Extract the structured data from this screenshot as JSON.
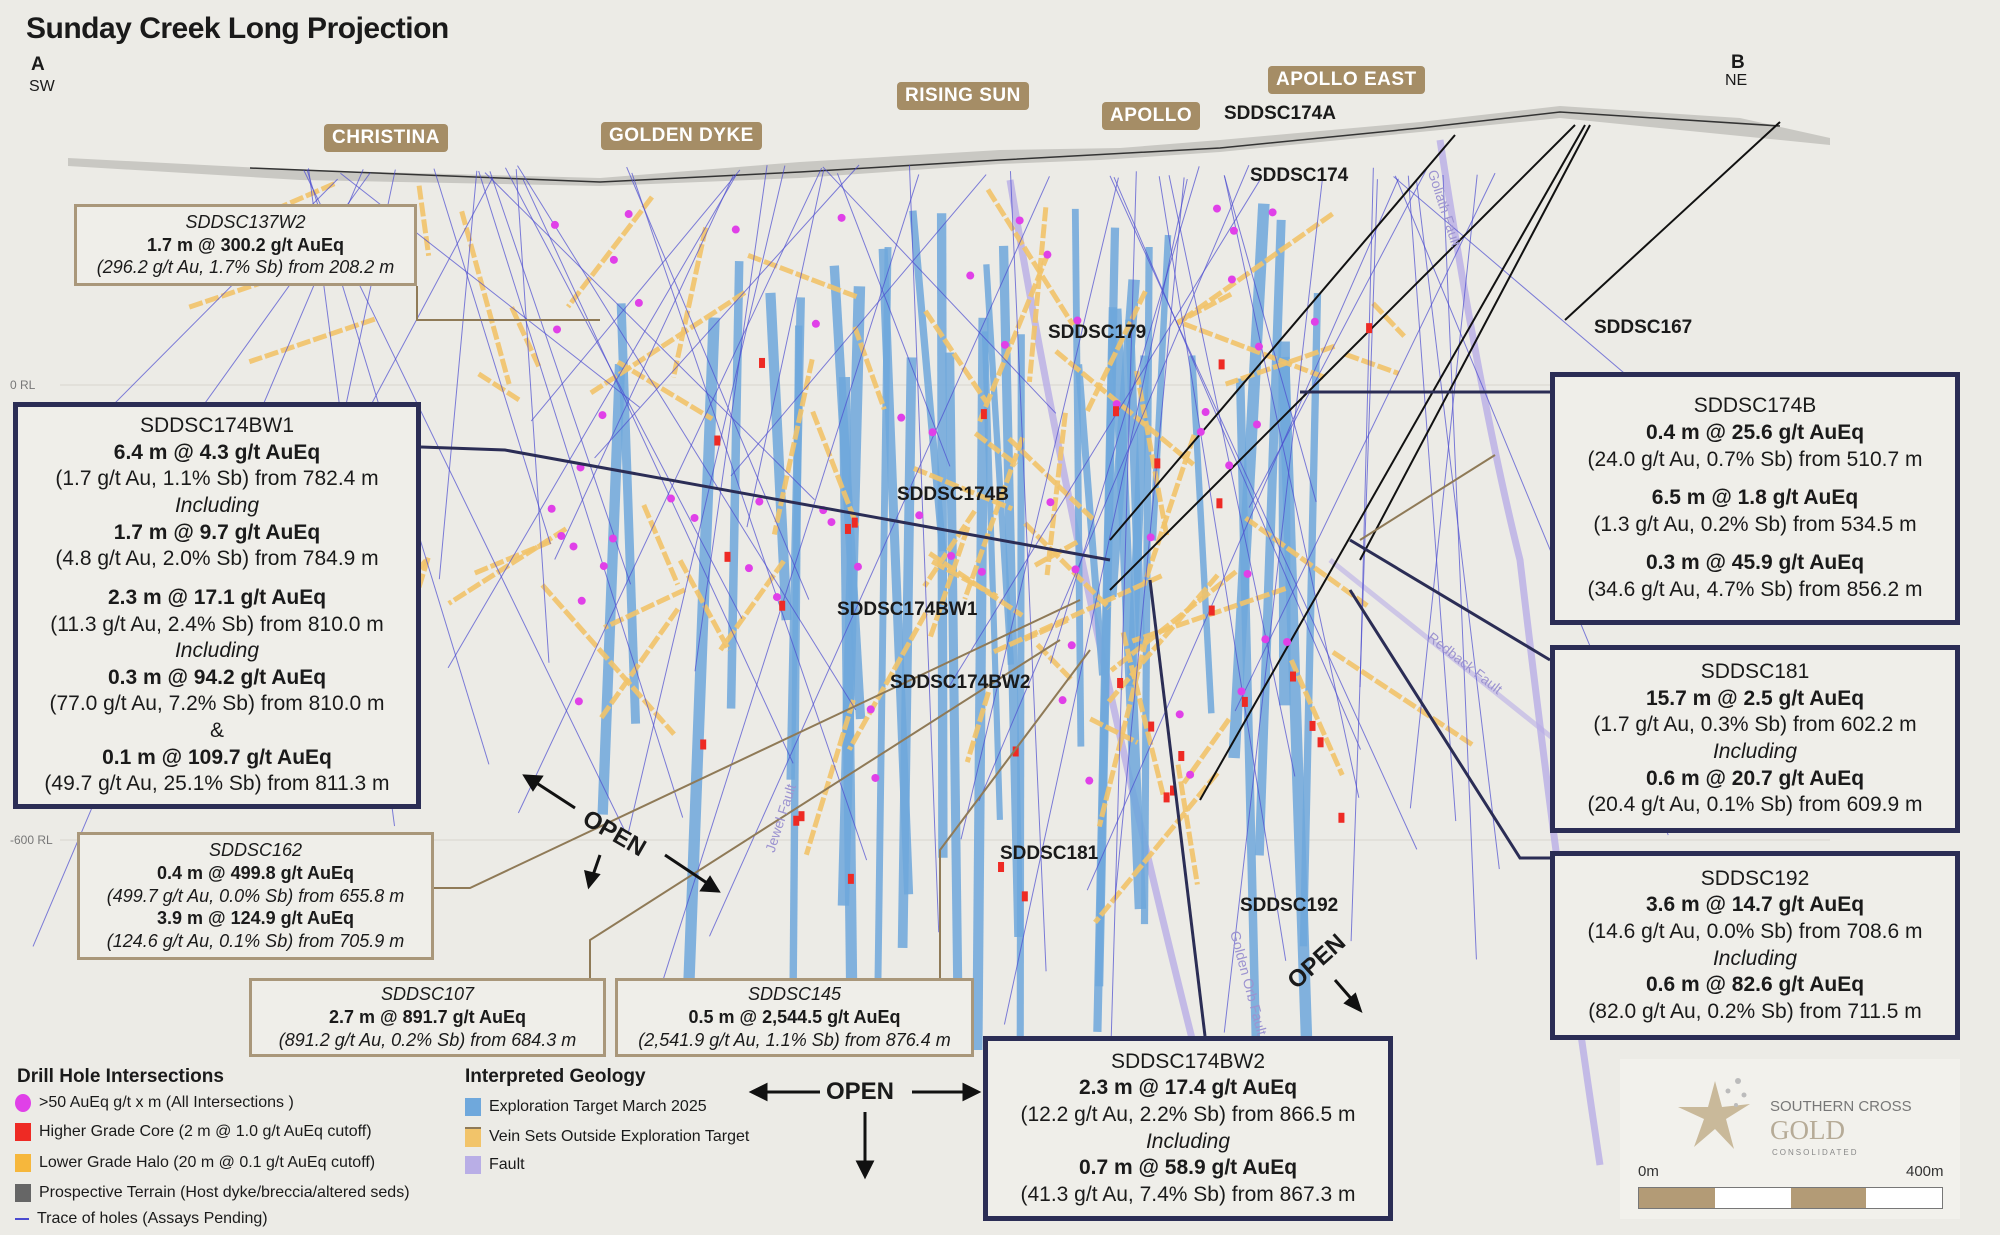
{
  "title": "Sunday Creek Long Projection",
  "section": {
    "start": "A",
    "start_dir": "SW",
    "end": "B",
    "end_dir": "NE"
  },
  "prospects": [
    "CHRISTINA",
    "GOLDEN DYKE",
    "RISING SUN",
    "APOLLO",
    "APOLLO EAST"
  ],
  "rl_labels": [
    "0 RL",
    "-600 RL"
  ],
  "hole_labels": [
    "SDDSC174A",
    "SDDSC174",
    "SDDSC179",
    "SDDSC167",
    "SDDSC174B",
    "SDDSC174BW1",
    "SDDSC174BW2",
    "SDDSC181",
    "SDDSC192"
  ],
  "faults": [
    "Goliath Fault",
    "Redback Fault",
    "Jewel Fault",
    "Golden Orb Fault"
  ],
  "open_label": "OPEN",
  "callouts": {
    "sddsc137w2": {
      "name": "SDDSC137W2",
      "lines": [
        "1.7 m @ 300.2 g/t AuEq",
        "(296.2 g/t Au, 1.7% Sb) from 208.2 m"
      ]
    },
    "sddsc174bw1": {
      "name": "SDDSC174BW1",
      "lines": [
        "6.4 m @ 4.3 g/t AuEq",
        "(1.7 g/t Au, 1.1% Sb) from 782.4 m",
        "Including",
        "1.7 m @ 9.7 g/t AuEq",
        "(4.8 g/t Au, 2.0% Sb) from 784.9 m",
        "2.3 m @ 17.1 g/t AuEq",
        "(11.3 g/t Au, 2.4% Sb) from 810.0 m",
        "Including",
        "0.3 m @ 94.2 g/t AuEq",
        "(77.0 g/t Au, 7.2% Sb) from 810.0 m",
        "&",
        "0.1 m @ 109.7 g/t AuEq",
        "(49.7 g/t Au, 25.1% Sb) from 811.3 m"
      ]
    },
    "sddsc162": {
      "name": "SDDSC162",
      "lines": [
        "0.4 m @ 499.8 g/t AuEq",
        "(499.7 g/t Au, 0.0% Sb) from 655.8 m",
        "3.9 m @ 124.9 g/t AuEq",
        "(124.6 g/t Au, 0.1% Sb) from 705.9 m"
      ]
    },
    "sddsc107": {
      "name": "SDDSC107",
      "lines": [
        "2.7 m @ 891.7 g/t AuEq",
        "(891.2 g/t Au, 0.2% Sb) from 684.3 m"
      ]
    },
    "sddsc145": {
      "name": "SDDSC145",
      "lines": [
        "0.5 m @ 2,544.5 g/t AuEq",
        "(2,541.9 g/t Au, 1.1% Sb) from 876.4 m"
      ]
    },
    "sddsc174bw2": {
      "name": "SDDSC174BW2",
      "lines": [
        "2.3 m @ 17.4 g/t AuEq",
        "(12.2 g/t Au, 2.2% Sb) from 866.5 m",
        "Including",
        "0.7 m @ 58.9 g/t AuEq",
        "(41.3 g/t Au, 7.4% Sb) from 867.3 m"
      ]
    },
    "sddsc174b": {
      "name": "SDDSC174B",
      "lines": [
        "0.4 m @ 25.6 g/t AuEq",
        "(24.0 g/t Au, 0.7% Sb) from 510.7 m",
        "6.5 m @ 1.8 g/t AuEq",
        "(1.3 g/t Au, 0.2% Sb) from 534.5 m",
        "0.3 m @ 45.9 g/t AuEq",
        "(34.6 g/t Au, 4.7% Sb) from 856.2 m"
      ]
    },
    "sddsc181": {
      "name": "SDDSC181",
      "lines": [
        "15.7 m @ 2.5 g/t AuEq",
        "(1.7 g/t Au, 0.3% Sb) from 602.2 m",
        "Including",
        "0.6 m @ 20.7 g/t AuEq",
        "(20.4 g/t Au, 0.1% Sb) from 609.9 m"
      ]
    },
    "sddsc192": {
      "name": "SDDSC192",
      "lines": [
        "3.6 m @ 14.7 g/t AuEq",
        "(14.6 g/t Au, 0.0% Sb) from 708.6 m",
        "Including",
        "0.6 m @ 82.6 g/t AuEq",
        "(82.0 g/t Au, 0.2% Sb) from 711.5 m"
      ]
    }
  },
  "legend": {
    "drill_heading": "Drill Hole Intersections",
    "drill_items": [
      ">50 AuEq g/t x m (All Intersections )",
      "Higher Grade Core (2 m @ 1.0 g/t AuEq cutoff)",
      "Lower Grade Halo (20 m @ 0.1 g/t AuEq cutoff)",
      "Prospective Terrain (Host dyke/breccia/altered seds)",
      "Trace of holes (Assays Pending)"
    ],
    "geo_heading": "Interpreted Geology",
    "geo_items": [
      "Exploration Target March 2025",
      "Vein Sets Outside Exploration Target",
      "Fault"
    ]
  },
  "colors": {
    "intersection": "#e040e8",
    "high_grade": "#ee2a24",
    "halo": "#f6b73c",
    "terrain": "#666666",
    "trace": "#4b4bd0",
    "target": "#6fa8dc",
    "vein": "#f2c46a",
    "fault": "#b9aee6",
    "accent": "#a58d66",
    "navy": "#2b2d55"
  },
  "logo": {
    "line1": "SOUTHERN CROSS",
    "line2": "GOLD",
    "line3": "CONSOLIDATED"
  },
  "scale": {
    "start": "0m",
    "end": "400m"
  }
}
